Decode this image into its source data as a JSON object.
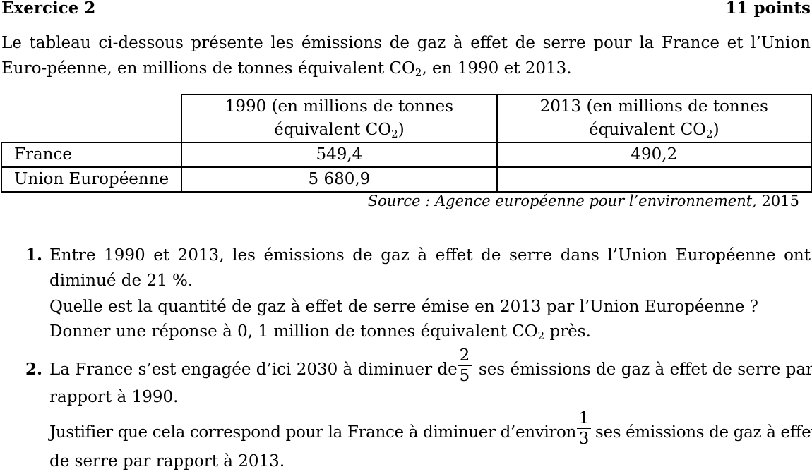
{
  "header": {
    "title": "Exercice 2",
    "points": "11 points"
  },
  "intro": {
    "text_before_sub": "Le tableau ci-dessous présente les émissions de gaz à effet de serre pour la France et l’Union Euro-péenne, en millions de tonnes équivalent CO",
    "sub": "2",
    "text_after_sub": ", en 1990 et 2013."
  },
  "table": {
    "headers": [
      {
        "line1": "1990 (en millions de tonnes",
        "line2_before": "équivalent CO",
        "sub": "2",
        "line2_after": ")"
      },
      {
        "line1": "2013 (en millions de tonnes",
        "line2_before": "équivalent CO",
        "sub": "2",
        "line2_after": ")"
      }
    ],
    "rows": [
      {
        "label": "France",
        "v1990": "549,4",
        "v2013": "490,2"
      },
      {
        "label": "Union Européenne",
        "v1990": "5 680,9",
        "v2013": ""
      }
    ]
  },
  "source": {
    "italic": "Source : Agence européenne pour l’environnement,",
    "year": "2015"
  },
  "questions": [
    {
      "number": "1.",
      "line1": "Entre 1990 et 2013, les émissions de gaz à effet de serre dans l’Union Européenne ont diminué de 21 %.",
      "line2": "Quelle est la quantité de gaz à effet de serre émise en 2013 par l’Union Européenne ?",
      "line3_before": "Donner une réponse à 0, 1 million de tonnes équivalent CO",
      "line3_sub": "2",
      "line3_after": " près."
    },
    {
      "number": "2.",
      "line1_before": "La France s’est engagée d’ici 2030 à diminuer de",
      "frac1_num": "2",
      "frac1_den": "5",
      "line1_after": "ses émissions de gaz à effet de serre par",
      "line1_cont": "rapport à 1990.",
      "line2_before": "Justifier que cela correspond pour la France à diminuer d’environ",
      "frac2_num": "1",
      "frac2_den": "3",
      "line2_after": "ses émissions de gaz à effet",
      "line2_cont": "de serre par rapport à 2013."
    }
  ]
}
